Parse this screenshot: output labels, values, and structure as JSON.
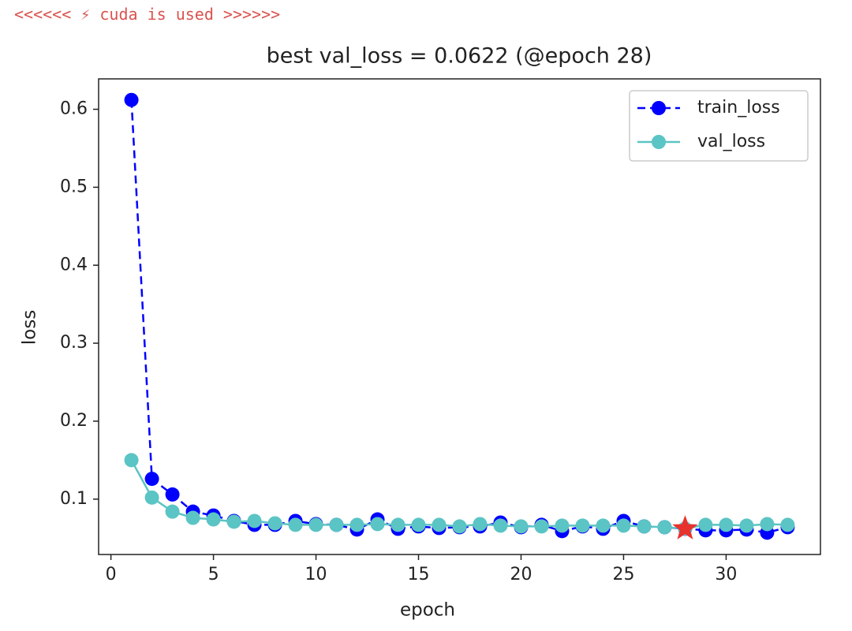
{
  "log_line": "<<<<<< ⚡ cuda is used >>>>>>",
  "chart_data": {
    "type": "line",
    "title": "best val_loss = 0.0622 (@epoch 28)",
    "xlabel": "epoch",
    "ylabel": "loss",
    "x": [
      1,
      2,
      3,
      4,
      5,
      6,
      7,
      8,
      9,
      10,
      11,
      12,
      13,
      14,
      15,
      16,
      17,
      18,
      19,
      20,
      21,
      22,
      23,
      24,
      25,
      26,
      27,
      28,
      29,
      30,
      31,
      32,
      33
    ],
    "series": [
      {
        "name": "train_loss",
        "color": "#0000ff",
        "linestyle": "dashed",
        "values": [
          0.612,
          0.126,
          0.106,
          0.084,
          0.079,
          0.072,
          0.067,
          0.067,
          0.072,
          0.068,
          0.067,
          0.061,
          0.074,
          0.062,
          0.065,
          0.063,
          0.064,
          0.065,
          0.07,
          0.064,
          0.067,
          0.059,
          0.065,
          0.062,
          0.072,
          0.065,
          0.064,
          0.062,
          0.06,
          0.06,
          0.061,
          0.057,
          0.064
        ]
      },
      {
        "name": "val_loss",
        "color": "#5bc4c4",
        "linestyle": "solid",
        "values": [
          0.15,
          0.102,
          0.084,
          0.076,
          0.074,
          0.071,
          0.072,
          0.069,
          0.067,
          0.067,
          0.067,
          0.067,
          0.068,
          0.067,
          0.067,
          0.067,
          0.065,
          0.068,
          0.066,
          0.065,
          0.065,
          0.066,
          0.066,
          0.066,
          0.066,
          0.065,
          0.064,
          0.0622,
          0.067,
          0.067,
          0.066,
          0.068,
          0.067
        ]
      }
    ],
    "best": {
      "x": 28,
      "y": 0.0622,
      "color": "#e8322d"
    },
    "xlim": [
      -0.6,
      34.6
    ],
    "xticks": [
      0,
      5,
      10,
      15,
      20,
      25,
      30
    ],
    "ylim": [
      0.029,
      0.639
    ],
    "yticks": [
      0.1,
      0.2,
      0.3,
      0.4,
      0.5,
      0.6
    ],
    "grid": false,
    "legend": "upper right"
  }
}
